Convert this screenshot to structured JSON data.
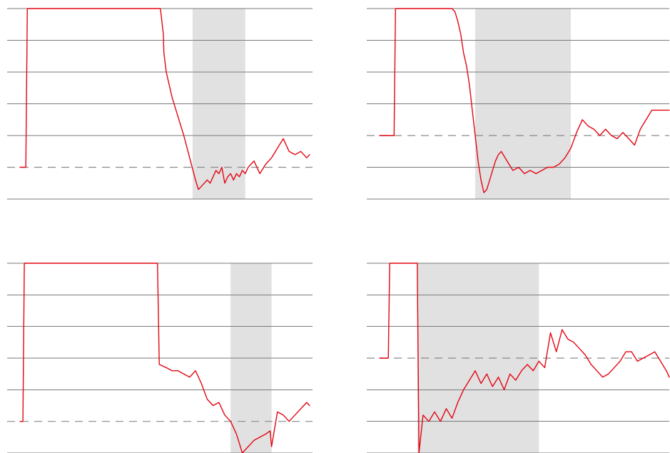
{
  "colors": {
    "line": "#e30613",
    "grid": "#7a7a7a",
    "band": "#e1e1e1",
    "baseline": "#8a8a8a",
    "background": "#ffffff"
  },
  "chart_data": [
    {
      "type": "line",
      "grid": true,
      "horizontal_gridlines": 6,
      "ylim": [
        0,
        6
      ],
      "xlim": [
        0,
        100
      ],
      "baseline_dashed_y": 1,
      "shaded_span": [
        59,
        77
      ],
      "series": [
        {
          "x": [
            0,
            2,
            2.5,
            48,
            49,
            49.2,
            50,
            51,
            52,
            54,
            56,
            58,
            60,
            61,
            62,
            63,
            64,
            65,
            66,
            67,
            68,
            69,
            70,
            71,
            72,
            73,
            74,
            75,
            76,
            77,
            78,
            80,
            82,
            84,
            86,
            88,
            90,
            92,
            94,
            96,
            98,
            99
          ],
          "y": [
            1,
            1,
            6,
            6,
            5.2,
            4.6,
            4,
            3.6,
            3.2,
            2.6,
            2.0,
            1.3,
            0.6,
            0.3,
            0.4,
            0.5,
            0.6,
            0.5,
            0.7,
            0.9,
            0.8,
            1.0,
            0.5,
            0.7,
            0.8,
            0.6,
            0.8,
            0.7,
            0.9,
            0.8,
            1.0,
            1.2,
            0.8,
            1.1,
            1.3,
            1.6,
            1.9,
            1.5,
            1.4,
            1.5,
            1.3,
            1.4
          ]
        }
      ]
    },
    {
      "type": "line",
      "grid": true,
      "horizontal_gridlines": 6,
      "ylim": [
        0,
        6
      ],
      "xlim": [
        0,
        100
      ],
      "baseline_dashed_y": 2,
      "shaded_span": [
        33,
        66
      ],
      "series": [
        {
          "x": [
            0,
            5,
            5.5,
            25,
            26,
            27,
            28,
            29,
            30,
            31,
            32,
            33,
            34,
            35,
            36,
            37,
            38,
            39,
            40,
            41,
            42,
            44,
            46,
            48,
            50,
            52,
            54,
            56,
            58,
            60,
            62,
            64,
            66,
            68,
            70,
            72,
            74,
            76,
            78,
            80,
            82,
            84,
            86,
            88,
            90,
            92,
            94,
            96,
            98,
            100
          ],
          "y": [
            2,
            2,
            6,
            6,
            5.9,
            5.6,
            5.2,
            4.6,
            4.2,
            3.6,
            2.8,
            2.0,
            1.2,
            0.6,
            0.2,
            0.3,
            0.6,
            0.9,
            1.2,
            1.4,
            1.5,
            1.2,
            0.9,
            1.0,
            0.8,
            0.9,
            0.8,
            0.9,
            1.0,
            1.0,
            1.1,
            1.3,
            1.6,
            2.1,
            2.5,
            2.3,
            2.2,
            2.0,
            2.2,
            2.0,
            1.9,
            2.1,
            1.9,
            1.7,
            2.2,
            2.5,
            2.8,
            2.8,
            2.8,
            2.8
          ]
        }
      ]
    },
    {
      "type": "line",
      "grid": true,
      "horizontal_gridlines": 6,
      "ylim": [
        0,
        6
      ],
      "xlim": [
        0,
        100
      ],
      "baseline_dashed_y": 1,
      "shaded_span": [
        72,
        86
      ],
      "series": [
        {
          "x": [
            0,
            1,
            1.5,
            47,
            47.3,
            47.6,
            50,
            52,
            54,
            56,
            58,
            60,
            62,
            64,
            66,
            68,
            70,
            72,
            74,
            76,
            78,
            80,
            82,
            84,
            85.5,
            86,
            88,
            90,
            92,
            94,
            96,
            98,
            99
          ],
          "y": [
            1,
            1,
            6,
            6,
            4.5,
            2.8,
            2.7,
            2.6,
            2.6,
            2.5,
            2.4,
            2.6,
            2.2,
            1.7,
            1.5,
            1.6,
            1.2,
            1.0,
            0.6,
            0.0,
            0.2,
            0.4,
            0.5,
            0.6,
            0.7,
            0.2,
            1.3,
            1.2,
            1.0,
            1.2,
            1.4,
            1.6,
            1.5
          ]
        }
      ]
    },
    {
      "type": "line",
      "grid": true,
      "horizontal_gridlines": 6,
      "ylim": [
        0,
        6
      ],
      "xlim": [
        0,
        100
      ],
      "baseline_dashed_y": 3,
      "shaded_span": [
        13,
        55
      ],
      "series": [
        {
          "x": [
            0,
            3,
            3.5,
            13,
            13.3,
            13.6,
            15,
            17,
            19,
            21,
            23,
            25,
            27,
            29,
            31,
            33,
            35,
            37,
            39,
            41,
            43,
            45,
            47,
            49,
            51,
            53,
            55,
            57,
            59,
            61,
            63,
            65,
            67,
            69,
            71,
            73,
            75,
            77,
            79,
            81,
            83,
            85,
            87,
            89,
            91,
            93,
            95,
            97,
            99,
            100
          ],
          "y": [
            3,
            3,
            6,
            6,
            3.0,
            0.0,
            1.2,
            1.0,
            1.3,
            1.0,
            1.4,
            1.1,
            1.6,
            2.0,
            2.3,
            2.6,
            2.2,
            2.5,
            2.1,
            2.4,
            2.0,
            2.5,
            2.3,
            2.6,
            2.8,
            2.6,
            2.9,
            2.7,
            3.8,
            3.2,
            3.9,
            3.6,
            3.5,
            3.3,
            3.1,
            2.8,
            2.6,
            2.4,
            2.5,
            2.7,
            2.9,
            3.2,
            3.2,
            2.9,
            3.0,
            3.1,
            3.2,
            2.9,
            2.6,
            2.4
          ]
        }
      ]
    }
  ]
}
